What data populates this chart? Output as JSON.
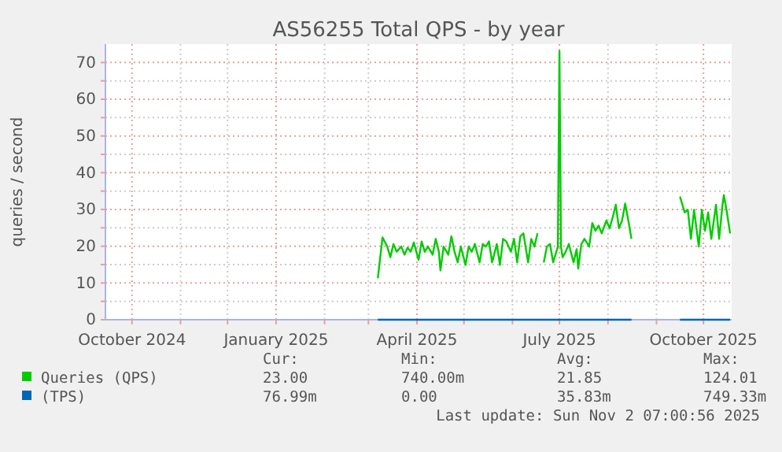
{
  "chart_data": {
    "type": "line",
    "title": "AS56255 Total QPS - by year",
    "ylabel": "queries / second",
    "xlim": [
      "2024-09-14",
      "2025-10-19"
    ],
    "xticks": [
      {
        "value": "2024-10-01",
        "label": "October 2024"
      },
      {
        "value": "2024-11-01",
        "label": null
      },
      {
        "value": "2024-12-01",
        "label": null
      },
      {
        "value": "2025-01-01",
        "label": "January 2025"
      },
      {
        "value": "2025-02-01",
        "label": null
      },
      {
        "value": "2025-03-01",
        "label": null
      },
      {
        "value": "2025-04-01",
        "label": "April 2025"
      },
      {
        "value": "2025-05-01",
        "label": null
      },
      {
        "value": "2025-06-01",
        "label": null
      },
      {
        "value": "2025-07-01",
        "label": "July 2025"
      },
      {
        "value": "2025-08-01",
        "label": null
      },
      {
        "value": "2025-09-01",
        "label": null
      },
      {
        "value": "2025-10-01",
        "label": "October 2025"
      }
    ],
    "ylim": [
      0,
      75
    ],
    "yticks": [
      0,
      {
        "value": 5,
        "label": null
      },
      10,
      {
        "value": 15,
        "label": null
      },
      20,
      {
        "value": 25,
        "label": null
      },
      30,
      {
        "value": 35,
        "label": null
      },
      40,
      {
        "value": 45,
        "label": null
      },
      50,
      {
        "value": 55,
        "label": null
      },
      60,
      {
        "value": 65,
        "label": null
      },
      70
    ],
    "grid": true,
    "legend": "bottom",
    "line_style": "solid",
    "marker": "none",
    "series": [
      {
        "name": "Queries (QPS)",
        "color": "#00cc00",
        "x": [
          "2025-03-07",
          "2025-03-10",
          "2025-03-13",
          "2025-03-15",
          "2025-03-17",
          "2025-03-19",
          "2025-03-22",
          "2025-03-24",
          "2025-03-26",
          "2025-03-28",
          "2025-03-30",
          "2025-04-02",
          "2025-04-04",
          "2025-04-06",
          "2025-04-08",
          "2025-04-11",
          "2025-04-13",
          "2025-04-15",
          "2025-04-16",
          "2025-04-18",
          "2025-04-21",
          "2025-04-23",
          "2025-04-25",
          "2025-04-27",
          "2025-04-29",
          "2025-05-02",
          "2025-05-04",
          "2025-05-06",
          "2025-05-08",
          "2025-05-11",
          "2025-05-13",
          "2025-05-15",
          "2025-05-17",
          "2025-05-19",
          "2025-05-22",
          "2025-05-24",
          "2025-05-26",
          "2025-05-28",
          "2025-05-31",
          "2025-06-02",
          "2025-06-04",
          "2025-06-06",
          "2025-06-08",
          "2025-06-11",
          "2025-06-13",
          "2025-06-15",
          "2025-06-17",
          "2025-06-18",
          "2025-06-21",
          "2025-06-23",
          "2025-06-25",
          "2025-06-27",
          "2025-06-30",
          "2025-07-01",
          "2025-07-02",
          "2025-07-03",
          "2025-07-05",
          "2025-07-07",
          "2025-07-10",
          "2025-07-12",
          "2025-07-13",
          "2025-07-15",
          "2025-07-17",
          "2025-07-20",
          "2025-07-22",
          "2025-07-24",
          "2025-07-26",
          "2025-07-28",
          "2025-07-31",
          "2025-08-02",
          "2025-08-04",
          "2025-08-06",
          "2025-08-08",
          "2025-08-10",
          "2025-08-12",
          "2025-08-14",
          "2025-08-16",
          "2025-08-27",
          "2025-09-16",
          "2025-09-19",
          "2025-09-21",
          "2025-09-23",
          "2025-09-25",
          "2025-09-28",
          "2025-09-30",
          "2025-10-02",
          "2025-10-04",
          "2025-10-06",
          "2025-10-09",
          "2025-10-11",
          "2025-10-13",
          "2025-10-14",
          "2025-10-16",
          "2025-10-18"
        ],
        "values": [
          11.3,
          22.4,
          19.9,
          17.0,
          20.6,
          18.5,
          19.9,
          17.7,
          19.6,
          18.5,
          21.0,
          16.3,
          21.3,
          18.5,
          19.9,
          17.7,
          22.0,
          18.5,
          13.4,
          19.9,
          17.7,
          22.7,
          18.5,
          15.6,
          19.9,
          14.9,
          19.9,
          18.5,
          20.6,
          15.6,
          20.6,
          19.9,
          21.3,
          15.6,
          20.6,
          14.9,
          22.0,
          21.3,
          18.5,
          22.0,
          15.6,
          22.7,
          23.5,
          15.6,
          22.0,
          19.9,
          23.5,
          null,
          15.6,
          19.9,
          20.6,
          15.6,
          19.9,
          73.1,
          19.9,
          17.0,
          18.5,
          20.6,
          15.6,
          19.2,
          13.9,
          20.6,
          22.0,
          19.9,
          26.3,
          24.2,
          25.6,
          23.5,
          27.0,
          24.9,
          27.8,
          31.3,
          24.9,
          27.0,
          31.6,
          27.0,
          22.0,
          null,
          33.5,
          29.2,
          29.9,
          22.0,
          29.9,
          19.9,
          29.9,
          24.2,
          29.2,
          22.0,
          31.3,
          22.0,
          30.6,
          33.9,
          29.2,
          23.5
        ]
      },
      {
        "name": "(TPS)",
        "color": "#0066b3",
        "x": [
          "2025-03-07",
          "2025-08-16",
          "2025-08-27",
          "2025-09-16",
          "2025-10-18"
        ],
        "values": [
          0,
          0,
          null,
          0,
          0
        ]
      }
    ],
    "annotations": [
      "Cur:",
      "Min:",
      "Avg:",
      "Max:",
      "23.00",
      "740.00m",
      "21.85",
      "124.01",
      "76.99m",
      "0.00",
      "35.83m",
      "749.33m",
      "Last update: Sun Nov  2 07:00:56 2025"
    ]
  }
}
